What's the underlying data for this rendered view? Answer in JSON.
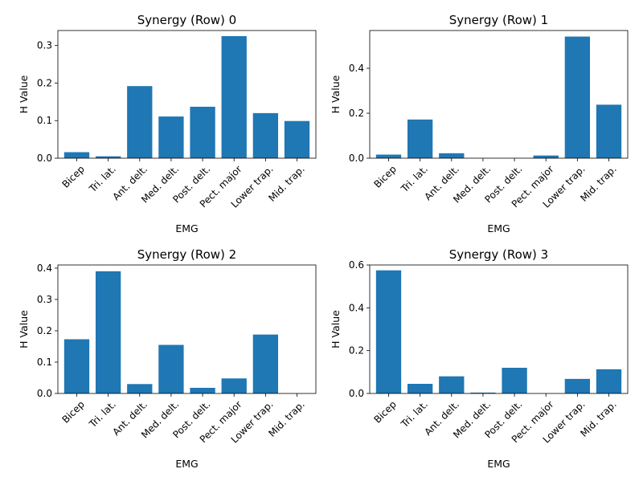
{
  "chart_data": [
    {
      "type": "bar",
      "title": "Synergy (Row) 0",
      "xlabel": "EMG",
      "ylabel": "H Value",
      "categories": [
        "Bicep",
        "Tri. lat.",
        "Ant. delt.",
        "Med. delt.",
        "Post. delt.",
        "Pect. major",
        "Lower trap.",
        "Mid. trap."
      ],
      "values": [
        0.016,
        0.005,
        0.192,
        0.111,
        0.137,
        0.325,
        0.12,
        0.099
      ],
      "ylim": [
        0,
        0.34
      ],
      "yticks": [
        0.0,
        0.1,
        0.2,
        0.3
      ],
      "ytick_labels": [
        "0.0",
        "0.1",
        "0.2",
        "0.3"
      ],
      "color": "#1f77b4",
      "grid": false
    },
    {
      "type": "bar",
      "title": "Synergy (Row) 1",
      "xlabel": "EMG",
      "ylabel": "H Value",
      "categories": [
        "Bicep",
        "Tri. lat.",
        "Ant. delt.",
        "Med. delt.",
        "Post. delt.",
        "Pect. major",
        "Lower trap.",
        "Mid. trap."
      ],
      "values": [
        0.016,
        0.172,
        0.022,
        0.0,
        0.0,
        0.012,
        0.541,
        0.238
      ],
      "ylim": [
        0,
        0.568
      ],
      "yticks": [
        0.0,
        0.2,
        0.4
      ],
      "ytick_labels": [
        "0.0",
        "0.2",
        "0.4"
      ],
      "color": "#1f77b4",
      "grid": false
    },
    {
      "type": "bar",
      "title": "Synergy (Row) 2",
      "xlabel": "EMG",
      "ylabel": "H Value",
      "categories": [
        "Bicep",
        "Tri. lat.",
        "Ant. delt.",
        "Med. delt.",
        "Post. delt.",
        "Pect. major",
        "Lower trap.",
        "Mid. trap."
      ],
      "values": [
        0.173,
        0.39,
        0.03,
        0.155,
        0.018,
        0.048,
        0.188,
        0.0
      ],
      "ylim": [
        0,
        0.41
      ],
      "yticks": [
        0.0,
        0.1,
        0.2,
        0.3,
        0.4
      ],
      "ytick_labels": [
        "0.0",
        "0.1",
        "0.2",
        "0.3",
        "0.4"
      ],
      "color": "#1f77b4",
      "grid": false
    },
    {
      "type": "bar",
      "title": "Synergy (Row) 3",
      "xlabel": "EMG",
      "ylabel": "H Value",
      "categories": [
        "Bicep",
        "Tri. lat.",
        "Ant. delt.",
        "Med. delt.",
        "Post. delt.",
        "Pect. major",
        "Lower trap.",
        "Mid. trap."
      ],
      "values": [
        0.575,
        0.045,
        0.08,
        0.004,
        0.12,
        0.0,
        0.068,
        0.113
      ],
      "ylim": [
        0,
        0.6
      ],
      "yticks": [
        0.0,
        0.2,
        0.4,
        0.6
      ],
      "ytick_labels": [
        "0.0",
        "0.2",
        "0.4",
        "0.6"
      ],
      "color": "#1f77b4",
      "grid": false
    }
  ]
}
